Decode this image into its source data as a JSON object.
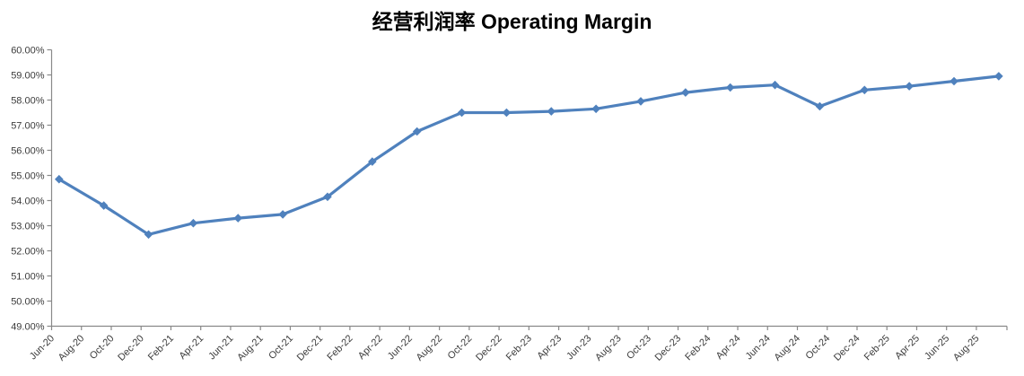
{
  "chart_data": {
    "type": "line",
    "title": "经营利润率 Operating Margin",
    "legend": false,
    "grid": false,
    "background": "#FFFFFF",
    "line_color": "#4F81BD",
    "marker": "diamond",
    "series": [
      {
        "name": "Operating Margin",
        "x": [
          "Jun-20",
          "Sep-20",
          "Dec-20",
          "Mar-21",
          "Jun-21",
          "Sep-21",
          "Dec-21",
          "Mar-22",
          "Jun-22",
          "Sep-22",
          "Dec-22",
          "Mar-23",
          "Jun-23",
          "Sep-23",
          "Dec-23",
          "Mar-24",
          "Jun-24",
          "Sep-24",
          "Dec-24",
          "Mar-25",
          "Jun-25",
          "Sep-25"
        ],
        "values": [
          54.85,
          53.8,
          52.65,
          53.1,
          53.3,
          53.45,
          54.15,
          55.55,
          56.75,
          57.5,
          57.5,
          57.55,
          57.65,
          57.95,
          58.3,
          58.5,
          58.6,
          57.75,
          58.4,
          58.55,
          58.75,
          58.95
        ]
      }
    ],
    "x_axis": {
      "tick_labels": [
        "Jun-20",
        "Aug-20",
        "Oct-20",
        "Dec-20",
        "Feb-21",
        "Apr-21",
        "Jun-21",
        "Aug-21",
        "Oct-21",
        "Dec-21",
        "Feb-22",
        "Apr-22",
        "Jun-22",
        "Aug-22",
        "Oct-22",
        "Dec-22",
        "Feb-23",
        "Apr-23",
        "Jun-23",
        "Aug-23",
        "Oct-23",
        "Dec-23",
        "Feb-24",
        "Apr-24",
        "Jun-24",
        "Aug-24",
        "Oct-24",
        "Dec-24",
        "Feb-25",
        "Apr-25",
        "Jun-25",
        "Aug-25"
      ],
      "label_rotation_deg": -45
    },
    "y_axis": {
      "min": 49,
      "max": 60,
      "step": 1,
      "unit": "%",
      "tick_labels": [
        "60.00%",
        "59.00%",
        "58.00%",
        "57.00%",
        "56.00%",
        "55.00%",
        "54.00%",
        "53.00%",
        "52.00%",
        "51.00%",
        "50.00%",
        "49.00%"
      ]
    },
    "colors": {
      "axis": "#898989",
      "tick_label": "#3b3b3b",
      "title": "#000000"
    }
  }
}
